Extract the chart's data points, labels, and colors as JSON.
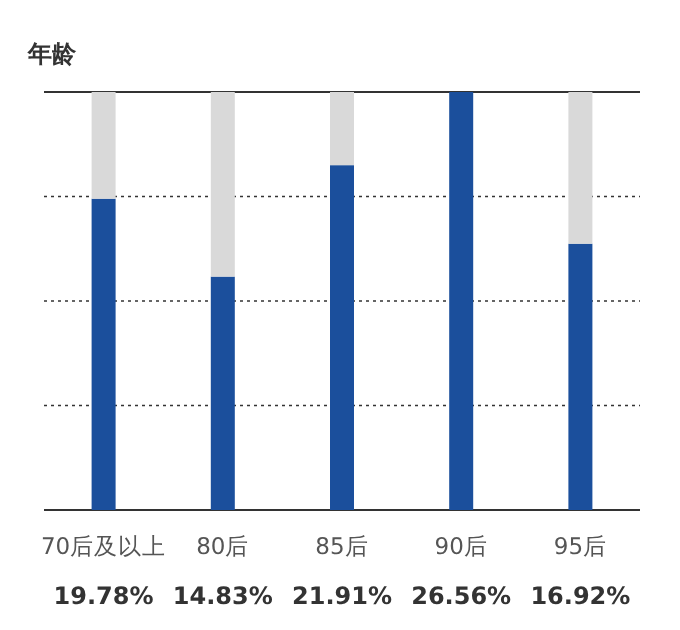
{
  "chart_data": {
    "type": "bar",
    "title": "年龄",
    "categories": [
      "70后及以上",
      "80后",
      "85后",
      "90后",
      "95后"
    ],
    "stacked": true,
    "series": [
      {
        "color": "#1b4f9c",
        "values": [
          19.78,
          14.83,
          21.91,
          26.56,
          16.92
        ],
        "value_labels": [
          "19.78%",
          "14.83%",
          "21.91%",
          "26.56%",
          "16.92%"
        ]
      },
      {
        "color": "#d9d9d9",
        "values": [
          6.78,
          11.73,
          4.65,
          0,
          9.64
        ]
      }
    ],
    "ylim": [
      0,
      26.56
    ],
    "yticks": [
      {
        "value": 6.64,
        "label": null
      },
      {
        "value": 13.28,
        "label": null
      },
      {
        "value": 19.92,
        "label": null
      }
    ],
    "grid": "y",
    "tick_labels": "x"
  }
}
